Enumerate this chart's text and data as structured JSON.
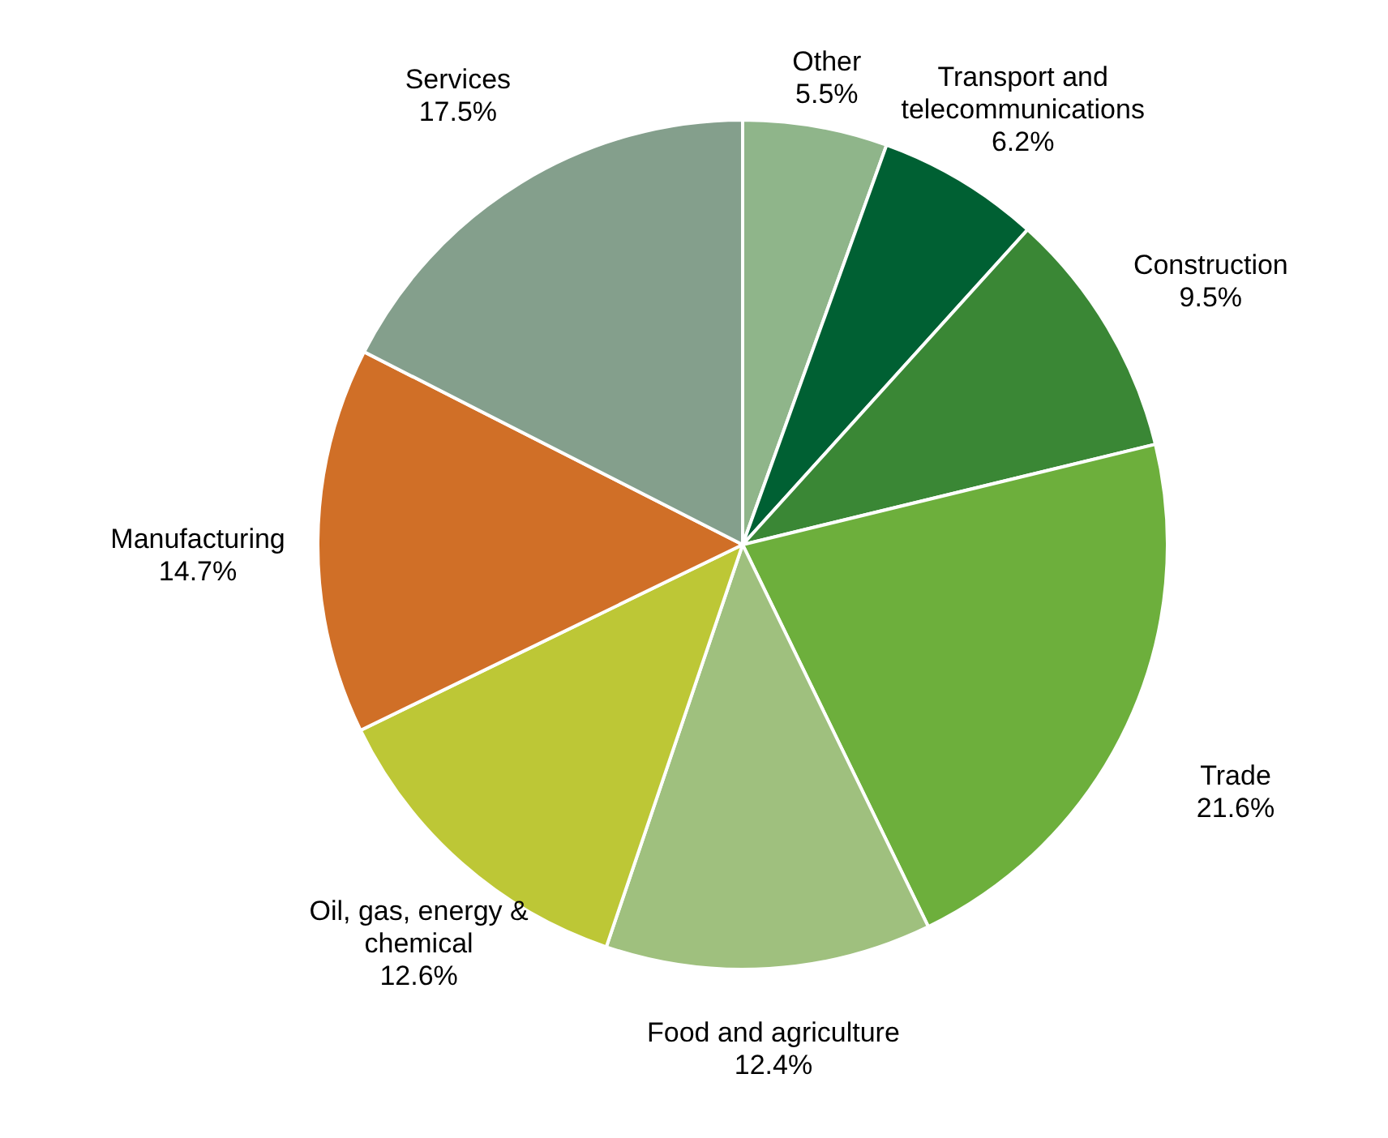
{
  "chart_data": {
    "type": "pie",
    "categories": [
      "Other",
      "Transport and telecommunications",
      "Construction",
      "Trade",
      "Food and agriculture",
      "Oil, gas, energy & chemical",
      "Manufacturing",
      "Services"
    ],
    "values": [
      5.5,
      6.2,
      9.5,
      21.6,
      12.4,
      12.6,
      14.7,
      17.5
    ],
    "value_labels": [
      "5.5%",
      "6.2%",
      "9.5%",
      "21.6%",
      "12.4%",
      "12.6%",
      "14.7%",
      "17.5%"
    ],
    "colors": [
      "#8fb58a",
      "#006033",
      "#3a8735",
      "#6daf3c",
      "#9fc07e",
      "#bdc736",
      "#d06f27",
      "#849f8c"
    ],
    "legend": false
  }
}
